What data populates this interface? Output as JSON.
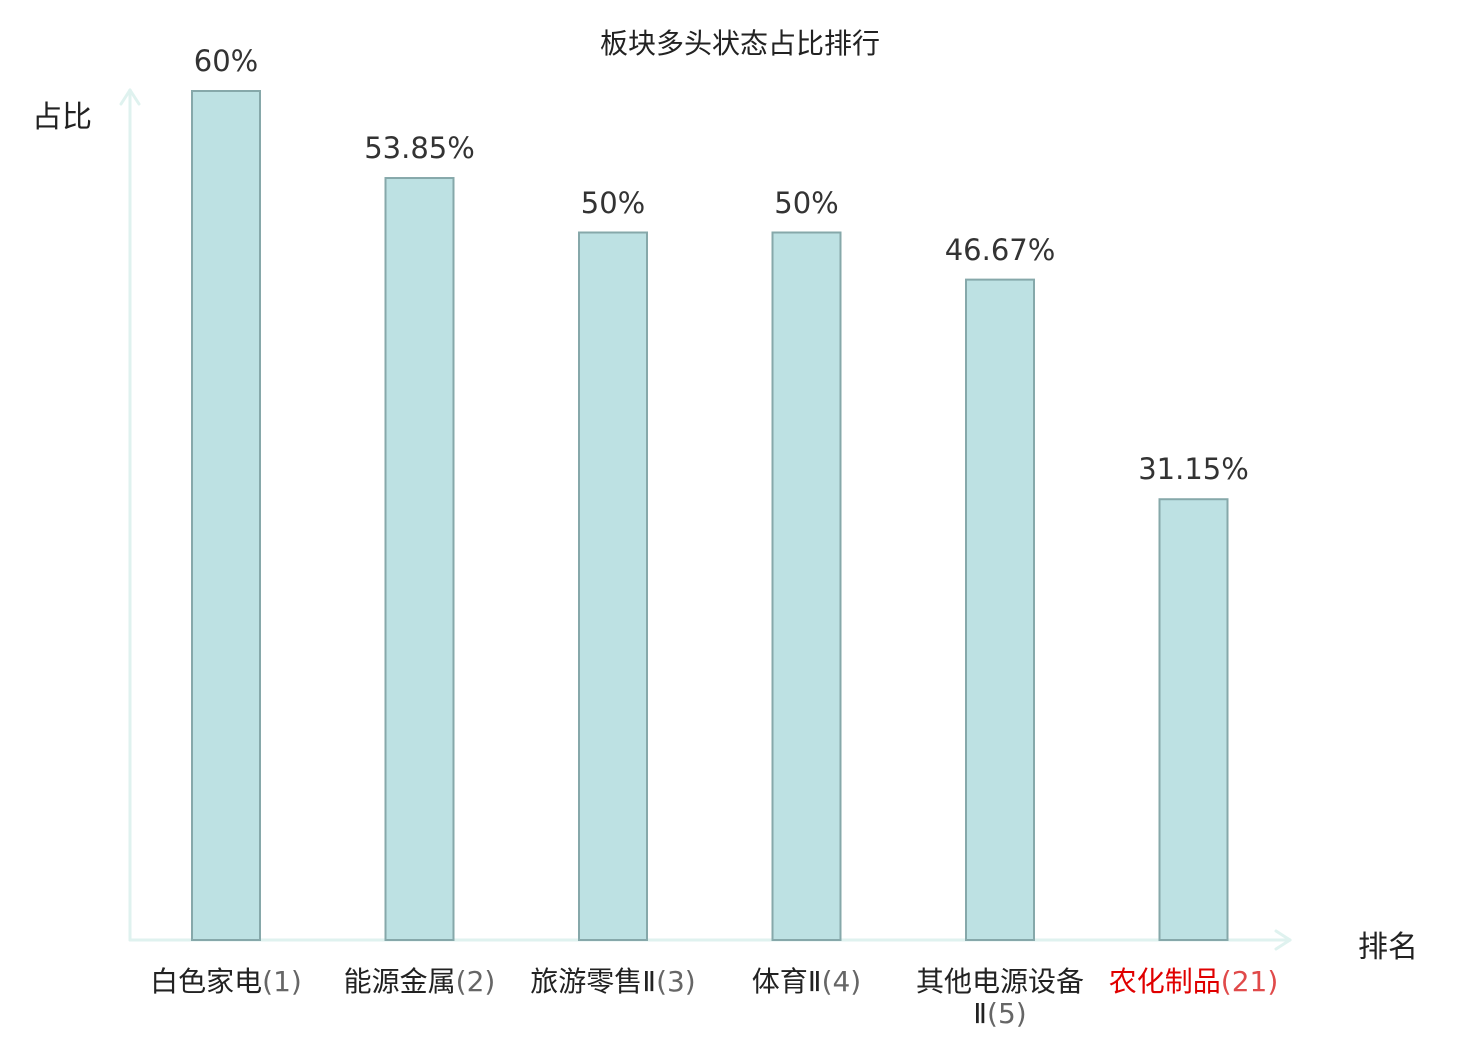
{
  "chart_data": {
    "type": "bar",
    "title": "板块多头状态占比排行",
    "ylabel": "占比",
    "xlabel": "排名",
    "ylim": [
      0,
      60
    ],
    "categories": [
      {
        "name": "白色家电",
        "rank": "(1)",
        "highlight": false
      },
      {
        "name": "能源金属",
        "rank": "(2)",
        "highlight": false
      },
      {
        "name": "旅游零售Ⅱ",
        "rank": "(3)",
        "highlight": false
      },
      {
        "name": "体育Ⅱ",
        "rank": "(4)",
        "highlight": false
      },
      {
        "name": "其他电源设备Ⅱ",
        "rank": "(5)",
        "highlight": false
      },
      {
        "name": "农化制品",
        "rank": "(21)",
        "highlight": true
      }
    ],
    "values": [
      60,
      53.85,
      50,
      50,
      46.67,
      31.15
    ],
    "value_labels": [
      "60%",
      "53.85%",
      "50%",
      "50%",
      "46.67%",
      "31.15%"
    ],
    "colors": {
      "bar_fill": "#bde1e3",
      "bar_stroke": "#86a8aa",
      "axis": "#dff2ef",
      "highlight_text": "#e00000"
    }
  }
}
